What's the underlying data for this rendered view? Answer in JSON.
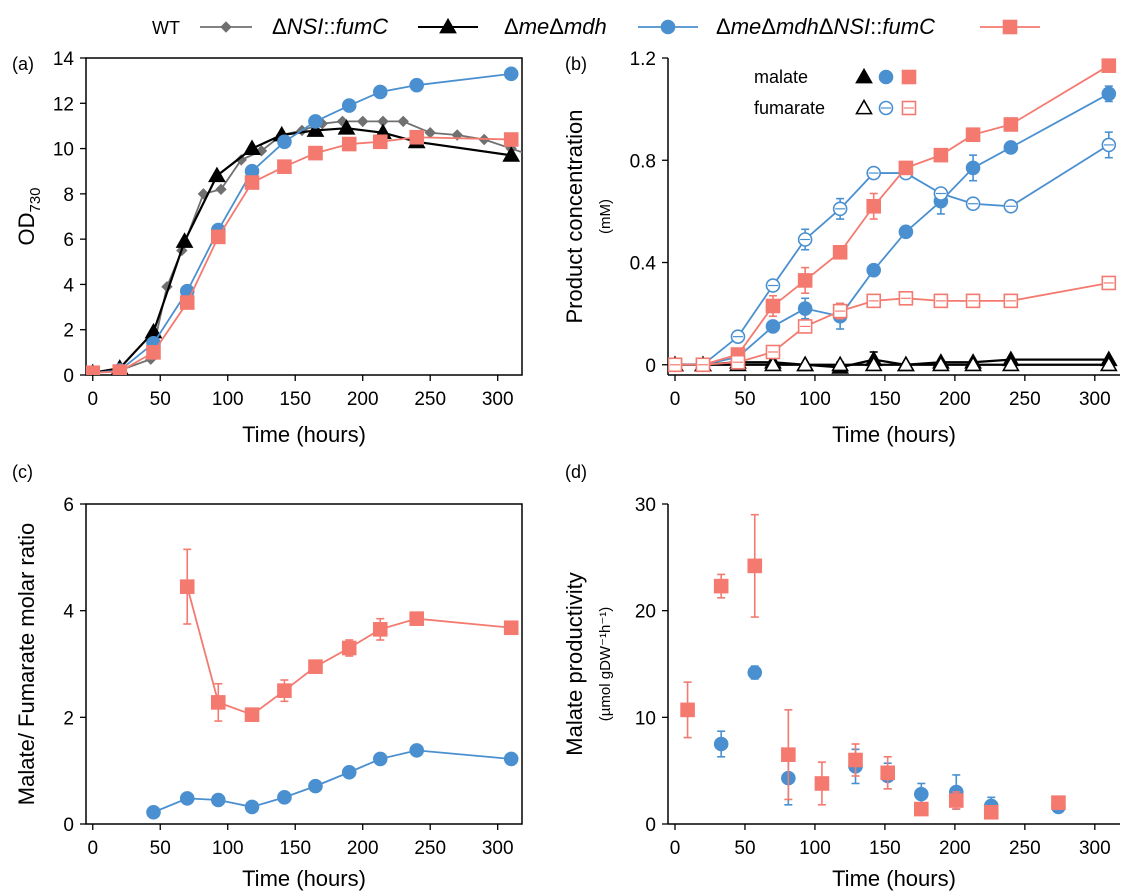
{
  "legend": {
    "entries": [
      {
        "label": "WT",
        "color": "#707070",
        "marker": "diamond"
      },
      {
        "label_prefix": "Δ",
        "label_italic": "NSI",
        "label_suffix": "::",
        "label_italic2": "fumC",
        "color": "#000000",
        "marker": "triangle"
      },
      {
        "label_prefix": "Δ",
        "label_italic": "me",
        "label_mid": "Δ",
        "label_italic2": "mdh",
        "color": "#4a90d0",
        "marker": "circle"
      },
      {
        "label_prefix": "Δ",
        "label_italic": "me",
        "label_mid": "Δ",
        "label_italic2": "mdh",
        "label_mid2": "Δ",
        "label_italic3": "NSI",
        "label_suffix": "::",
        "label_italic4": "fumC",
        "color": "#f47a70",
        "marker": "square"
      }
    ]
  },
  "colors": {
    "wt": "#707070",
    "nsi": "#000000",
    "memdh": "#4a90d0",
    "triple": "#f47a70"
  },
  "chart_data": [
    {
      "panel": "(a)",
      "type": "line",
      "xlabel": "Time (hours)",
      "ylabel_main": "OD",
      "ylabel_sub": "730",
      "xlim": [
        -5,
        318
      ],
      "ylim": [
        0,
        14
      ],
      "xticks": [
        0,
        50,
        100,
        150,
        200,
        250,
        300
      ],
      "yticks": [
        0,
        2,
        4,
        6,
        8,
        10,
        12,
        14
      ],
      "series": [
        {
          "name": "WT",
          "color": "wt",
          "marker": "diamond",
          "x": [
            0,
            20,
            43,
            55,
            66,
            82,
            95,
            110,
            125,
            140,
            155,
            170,
            185,
            200,
            215,
            230,
            250,
            270,
            290,
            310,
            330
          ],
          "y": [
            0.1,
            0.2,
            0.7,
            3.9,
            5.5,
            8.0,
            8.2,
            9.5,
            9.9,
            10.6,
            10.8,
            11.1,
            11.2,
            11.2,
            11.2,
            11.2,
            10.7,
            10.6,
            10.4,
            10.0,
            9.6
          ]
        },
        {
          "name": "ΔNSI::fumC",
          "color": "nsi",
          "marker": "triangle",
          "x": [
            0,
            20,
            45,
            68,
            92,
            118,
            140,
            165,
            188,
            215,
            240,
            310
          ],
          "y": [
            0.1,
            0.3,
            1.9,
            5.9,
            8.8,
            10.0,
            10.6,
            10.8,
            10.9,
            10.7,
            10.3,
            9.7
          ]
        },
        {
          "name": "ΔmeΔmdh",
          "color": "memdh",
          "marker": "circle",
          "x": [
            0,
            20,
            45,
            70,
            93,
            118,
            142,
            165,
            190,
            213,
            240,
            310
          ],
          "y": [
            0.1,
            0.2,
            1.4,
            3.7,
            6.4,
            9.0,
            10.3,
            11.2,
            11.9,
            12.5,
            12.8,
            13.3
          ]
        },
        {
          "name": "ΔmeΔmdhΔNSI::fumC",
          "color": "triple",
          "marker": "square",
          "x": [
            0,
            20,
            45,
            70,
            93,
            118,
            142,
            165,
            190,
            213,
            240,
            310
          ],
          "y": [
            0.1,
            0.15,
            1.0,
            3.2,
            6.1,
            8.5,
            9.2,
            9.8,
            10.2,
            10.3,
            10.5,
            10.4
          ]
        }
      ]
    },
    {
      "panel": "(b)",
      "type": "line",
      "xlabel": "Time (hours)",
      "ylabel_main": "Product concentration",
      "ylabel_sub": "(mM)",
      "xlim": [
        -5,
        318
      ],
      "ylim": [
        -0.04,
        1.2
      ],
      "xticks": [
        0,
        50,
        100,
        150,
        200,
        250,
        300
      ],
      "yticks": [
        0,
        0.4,
        0.8,
        1.2
      ],
      "ytick_labels": [
        "0",
        "0.4",
        "0.8",
        "1.2"
      ],
      "inset_legend": {
        "rows": [
          {
            "label": "malate",
            "filled": true
          },
          {
            "label": "fumarate",
            "filled": false
          }
        ]
      },
      "series": [
        {
          "name": "malate ΔNSI::fumC",
          "color": "nsi",
          "marker": "triangle",
          "filled": true,
          "x": [
            0,
            20,
            45,
            70,
            93,
            118,
            142,
            165,
            190,
            213,
            240,
            310
          ],
          "y": [
            0,
            0,
            0.01,
            0.01,
            0.0,
            -0.01,
            0.02,
            0.0,
            0.01,
            0.01,
            0.02,
            0.02
          ],
          "err": [
            0,
            0,
            0,
            0,
            0,
            0.02,
            0.03,
            0,
            0,
            0,
            0,
            0
          ]
        },
        {
          "name": "fumarate ΔNSI::fumC",
          "color": "nsi",
          "marker": "triangle",
          "filled": false,
          "x": [
            0,
            20,
            45,
            70,
            93,
            118,
            142,
            165,
            190,
            213,
            240,
            310
          ],
          "y": [
            0,
            0,
            0,
            0,
            0,
            0,
            0,
            0,
            0,
            0,
            0,
            0
          ],
          "err": [
            0,
            0,
            0,
            0,
            0,
            0,
            0,
            0,
            0,
            0,
            0,
            0
          ]
        },
        {
          "name": "malate ΔmeΔmdh",
          "color": "memdh",
          "marker": "circle",
          "filled": true,
          "x": [
            0,
            20,
            45,
            70,
            93,
            118,
            142,
            165,
            190,
            213,
            240,
            310
          ],
          "y": [
            0,
            0,
            0.03,
            0.15,
            0.22,
            0.19,
            0.37,
            0.52,
            0.64,
            0.77,
            0.85,
            1.06
          ],
          "err": [
            0,
            0,
            0.01,
            0.02,
            0.04,
            0.05,
            0.02,
            0.02,
            0.05,
            0.05,
            0.02,
            0.03
          ]
        },
        {
          "name": "fumarate ΔmeΔmdh",
          "color": "memdh",
          "marker": "circle",
          "filled": false,
          "x": [
            0,
            20,
            45,
            70,
            93,
            118,
            142,
            165,
            190,
            213,
            240,
            310
          ],
          "y": [
            0,
            0,
            0.11,
            0.31,
            0.49,
            0.61,
            0.75,
            0.75,
            0.67,
            0.63,
            0.62,
            0.86
          ],
          "err": [
            0,
            0,
            0.01,
            0.02,
            0.04,
            0.04,
            0.02,
            0.02,
            0.02,
            0.02,
            0.02,
            0.05
          ]
        },
        {
          "name": "malate ΔmeΔmdhΔNSI::fumC",
          "color": "triple",
          "marker": "square",
          "filled": true,
          "x": [
            0,
            20,
            45,
            70,
            93,
            118,
            142,
            165,
            190,
            213,
            240,
            310
          ],
          "y": [
            0,
            0,
            0.04,
            0.23,
            0.33,
            0.44,
            0.62,
            0.77,
            0.82,
            0.9,
            0.94,
            1.17
          ],
          "err": [
            0,
            0,
            0.01,
            0.04,
            0.05,
            0.02,
            0.05,
            0.02,
            0.02,
            0.02,
            0.02,
            0.02
          ]
        },
        {
          "name": "fumarate ΔmeΔmdhΔNSI::fumC",
          "color": "triple",
          "marker": "square",
          "filled": false,
          "x": [
            0,
            20,
            45,
            70,
            93,
            118,
            142,
            165,
            190,
            213,
            240,
            310
          ],
          "y": [
            0,
            0,
            0.01,
            0.05,
            0.15,
            0.21,
            0.25,
            0.26,
            0.25,
            0.25,
            0.25,
            0.32
          ],
          "err": [
            0,
            0,
            0.01,
            0.01,
            0.02,
            0.03,
            0.02,
            0.02,
            0.02,
            0.02,
            0.02,
            0.02
          ]
        }
      ]
    },
    {
      "panel": "(c)",
      "type": "line",
      "xlabel": "Time (hours)",
      "ylabel_main": "Malate/ Fumarate molar ratio",
      "xlim": [
        -5,
        318
      ],
      "ylim": [
        0,
        6
      ],
      "xticks": [
        0,
        50,
        100,
        150,
        200,
        250,
        300
      ],
      "yticks": [
        0,
        2,
        4,
        6
      ],
      "series": [
        {
          "name": "ΔmeΔmdh",
          "color": "memdh",
          "marker": "circle",
          "x": [
            45,
            70,
            93,
            118,
            142,
            165,
            190,
            213,
            240,
            310
          ],
          "y": [
            0.22,
            0.48,
            0.45,
            0.32,
            0.5,
            0.71,
            0.97,
            1.22,
            1.38,
            1.22
          ],
          "err": [
            0,
            0,
            0,
            0,
            0,
            0,
            0,
            0,
            0,
            0
          ]
        },
        {
          "name": "ΔmeΔmdhΔNSI::fumC",
          "color": "triple",
          "marker": "square",
          "x": [
            70,
            93,
            118,
            142,
            165,
            190,
            213,
            240,
            310
          ],
          "y": [
            4.45,
            2.28,
            2.05,
            2.5,
            2.95,
            3.3,
            3.65,
            3.85,
            3.68
          ],
          "err": [
            0.7,
            0.35,
            0,
            0.2,
            0.1,
            0.15,
            0.2,
            0.1,
            0.12
          ]
        }
      ]
    },
    {
      "panel": "(d)",
      "type": "scatter",
      "xlabel": "Time (hours)",
      "ylabel_main": "Malate productivity",
      "ylabel_sub": "(µmol gDW⁻¹h⁻¹)",
      "xlim": [
        -5,
        318
      ],
      "ylim": [
        0,
        30
      ],
      "xticks": [
        0,
        50,
        100,
        150,
        200,
        250,
        300
      ],
      "yticks": [
        0,
        10,
        20,
        30
      ],
      "series": [
        {
          "name": "ΔmeΔmdh",
          "color": "memdh",
          "marker": "circle",
          "x": [
            33,
            57,
            81,
            129,
            152,
            176,
            201,
            226,
            274
          ],
          "y": [
            7.5,
            14.2,
            4.3,
            5.4,
            4.5,
            2.8,
            3.0,
            1.7,
            1.6
          ],
          "err": [
            1.2,
            0.6,
            2.5,
            1.6,
            1.2,
            1.0,
            1.6,
            0.8,
            0.3
          ]
        },
        {
          "name": "ΔmeΔmdhΔNSI::fumC",
          "color": "triple",
          "marker": "square",
          "x": [
            9,
            33,
            57,
            81,
            105,
            129,
            152,
            176,
            201,
            226,
            274
          ],
          "y": [
            10.7,
            22.3,
            24.2,
            6.5,
            3.8,
            6.0,
            4.8,
            1.4,
            2.2,
            1.1,
            2.0
          ],
          "err": [
            2.6,
            1.1,
            4.8,
            4.2,
            2.0,
            1.5,
            1.5,
            0.4,
            0.8,
            0.3,
            0.3
          ]
        }
      ]
    }
  ]
}
